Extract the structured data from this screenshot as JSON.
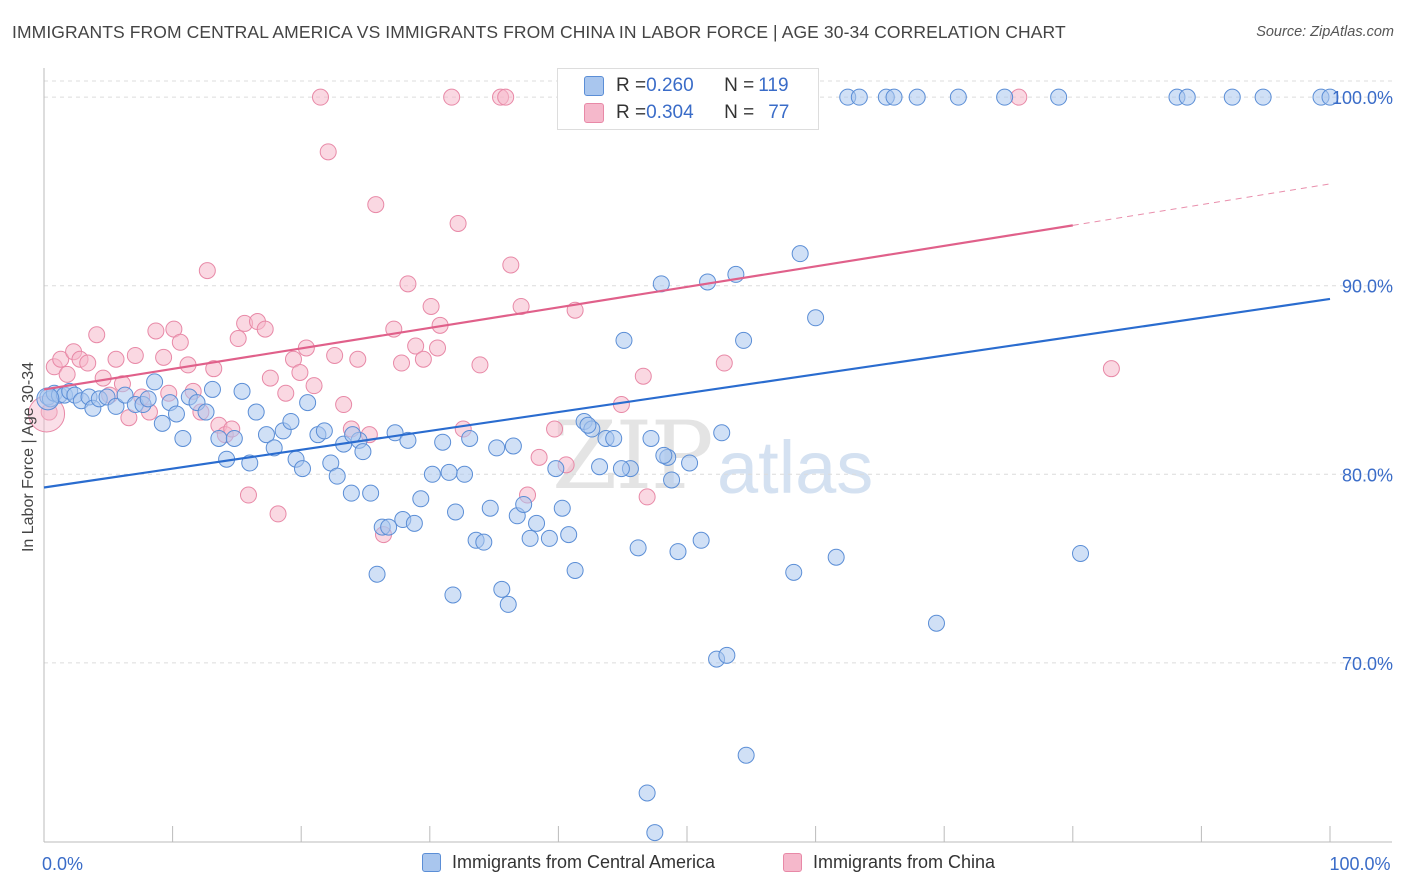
{
  "title": "IMMIGRANTS FROM CENTRAL AMERICA VS IMMIGRANTS FROM CHINA IN LABOR FORCE | AGE 30-34 CORRELATION CHART",
  "source": "Source: ZipAtlas.com",
  "watermark": {
    "zip": "ZIP",
    "atlas": "atlas"
  },
  "colors": {
    "blue_fill": "#a9c6ee",
    "blue_stroke": "#5b8ed6",
    "blue_line": "#2a6ccf",
    "pink_fill": "#f5b8cb",
    "pink_stroke": "#e889a7",
    "pink_line": "#e0608a",
    "tick_text": "#3a6cc8",
    "grid": "#dcdcdc"
  },
  "stats_legend": {
    "rows": [
      {
        "r_label": "R = ",
        "r_value": "0.260",
        "n_label": "N = ",
        "n_value": "119"
      },
      {
        "r_label": "R = ",
        "r_value": "0.304",
        "n_label": "N = ",
        "n_value": "77"
      }
    ]
  },
  "chart_data": {
    "type": "scatter",
    "title": "IMMIGRANTS FROM CENTRAL AMERICA VS IMMIGRANTS FROM CHINA IN LABOR FORCE | AGE 30-34 CORRELATION CHART",
    "xlabel": "",
    "ylabel": "In Labor Force | Age 30-34",
    "xlim": [
      0,
      100
    ],
    "ylim": [
      60.5,
      102.5
    ],
    "x_tick_labels": [
      {
        "value": 0,
        "label": "0.0%"
      },
      {
        "value": 100,
        "label": "100.0%"
      }
    ],
    "y_ticks": [
      {
        "value": 70,
        "label": "70.0%"
      },
      {
        "value": 80,
        "label": "80.0%"
      },
      {
        "value": 90,
        "label": "90.0%"
      },
      {
        "value": 100,
        "label": "100.0%"
      }
    ],
    "grid": "horizontal-dashed",
    "legend_placement": "bottom-center",
    "series": [
      {
        "name": "Immigrants from Central America",
        "color": "#a9c6ee",
        "R": 0.26,
        "N": 119,
        "trend": {
          "x0": 0,
          "y0": 79.3,
          "x1": 100,
          "y1": 89.3
        },
        "points": [
          [
            0.3,
            84.1
          ],
          [
            0.5,
            84.0
          ],
          [
            0.8,
            84.3
          ],
          [
            1.2,
            84.2
          ],
          [
            1.6,
            84.2
          ],
          [
            2.0,
            84.4
          ],
          [
            2.4,
            84.2
          ],
          [
            2.9,
            83.9
          ],
          [
            3.5,
            84.1
          ],
          [
            3.8,
            83.5
          ],
          [
            4.3,
            84.0
          ],
          [
            4.9,
            84.1
          ],
          [
            5.6,
            83.6
          ],
          [
            6.3,
            84.2
          ],
          [
            7.1,
            83.7
          ],
          [
            7.7,
            83.7
          ],
          [
            8.1,
            84.0
          ],
          [
            8.6,
            84.9
          ],
          [
            9.2,
            82.7
          ],
          [
            9.8,
            83.8
          ],
          [
            10.3,
            83.2
          ],
          [
            10.8,
            81.9
          ],
          [
            11.3,
            84.1
          ],
          [
            11.9,
            83.8
          ],
          [
            12.6,
            83.3
          ],
          [
            13.1,
            84.5
          ],
          [
            13.6,
            81.9
          ],
          [
            14.2,
            80.8
          ],
          [
            14.8,
            81.9
          ],
          [
            15.4,
            84.4
          ],
          [
            16.0,
            80.6
          ],
          [
            16.5,
            83.3
          ],
          [
            17.3,
            82.1
          ],
          [
            17.9,
            81.4
          ],
          [
            18.6,
            82.3
          ],
          [
            19.2,
            82.8
          ],
          [
            19.6,
            80.8
          ],
          [
            20.1,
            80.3
          ],
          [
            20.5,
            83.8
          ],
          [
            21.3,
            82.1
          ],
          [
            21.8,
            82.3
          ],
          [
            22.3,
            80.6
          ],
          [
            22.8,
            79.9
          ],
          [
            23.3,
            81.6
          ],
          [
            23.9,
            79.0
          ],
          [
            24.5,
            81.8
          ],
          [
            24.8,
            81.2
          ],
          [
            25.4,
            79.0
          ],
          [
            25.9,
            74.7
          ],
          [
            26.3,
            77.2
          ],
          [
            26.8,
            77.2
          ],
          [
            27.3,
            82.2
          ],
          [
            27.9,
            77.6
          ],
          [
            28.3,
            81.8
          ],
          [
            28.8,
            77.4
          ],
          [
            29.3,
            78.7
          ],
          [
            30.2,
            80.0
          ],
          [
            31.0,
            81.7
          ],
          [
            31.8,
            73.6
          ],
          [
            32.0,
            78.0
          ],
          [
            32.7,
            80.0
          ],
          [
            33.1,
            81.9
          ],
          [
            33.6,
            76.5
          ],
          [
            34.2,
            76.4
          ],
          [
            34.7,
            78.2
          ],
          [
            35.2,
            81.4
          ],
          [
            35.6,
            73.9
          ],
          [
            36.1,
            73.1
          ],
          [
            36.8,
            77.8
          ],
          [
            37.3,
            78.4
          ],
          [
            37.8,
            76.6
          ],
          [
            38.3,
            77.4
          ],
          [
            39.3,
            76.6
          ],
          [
            39.8,
            80.3
          ],
          [
            40.3,
            78.2
          ],
          [
            40.8,
            76.8
          ],
          [
            41.3,
            74.9
          ],
          [
            42.0,
            82.8
          ],
          [
            42.6,
            82.4
          ],
          [
            43.2,
            80.4
          ],
          [
            43.7,
            81.9
          ],
          [
            44.3,
            81.9
          ],
          [
            45.1,
            87.1
          ],
          [
            45.6,
            80.3
          ],
          [
            46.2,
            76.1
          ],
          [
            46.9,
            63.1
          ],
          [
            47.5,
            61.0
          ],
          [
            48.0,
            90.1
          ],
          [
            48.5,
            80.9
          ],
          [
            48.8,
            79.7
          ],
          [
            49.3,
            75.9
          ],
          [
            50.4,
            100.0
          ],
          [
            51.1,
            76.5
          ],
          [
            51.6,
            90.2
          ],
          [
            52.3,
            70.2
          ],
          [
            53.1,
            70.4
          ],
          [
            53.8,
            90.6
          ],
          [
            54.4,
            87.1
          ],
          [
            54.6,
            65.1
          ],
          [
            55.9,
            100.0
          ],
          [
            58.3,
            74.8
          ],
          [
            58.8,
            91.7
          ],
          [
            60.0,
            88.3
          ],
          [
            61.6,
            75.6
          ],
          [
            62.5,
            100.0
          ],
          [
            63.4,
            100.0
          ],
          [
            65.5,
            100.0
          ],
          [
            66.1,
            100.0
          ],
          [
            67.9,
            100.0
          ],
          [
            69.4,
            72.1
          ],
          [
            71.1,
            100.0
          ],
          [
            74.7,
            100.0
          ],
          [
            78.9,
            100.0
          ],
          [
            80.6,
            75.8
          ],
          [
            88.1,
            100.0
          ],
          [
            88.9,
            100.0
          ],
          [
            92.4,
            100.0
          ],
          [
            94.8,
            100.0
          ],
          [
            99.3,
            100.0
          ],
          [
            100.0,
            100.0
          ],
          [
            42.3,
            82.6
          ],
          [
            44.9,
            80.3
          ],
          [
            36.5,
            81.5
          ],
          [
            48.2,
            81.0
          ],
          [
            24.0,
            82.1
          ],
          [
            31.5,
            80.1
          ],
          [
            47.2,
            81.9
          ],
          [
            52.7,
            82.2
          ],
          [
            50.2,
            80.6
          ]
        ]
      },
      {
        "name": "Immigrants from China",
        "color": "#f5b8cb",
        "R": 0.304,
        "N": 77,
        "trend": {
          "x0": 0,
          "y0": 84.5,
          "x1": 80.0,
          "y1": 93.2,
          "dash_to_x": 100,
          "dash_to_y": 95.4
        },
        "points": [
          [
            0.4,
            83.3
          ],
          [
            0.8,
            85.7
          ],
          [
            1.3,
            86.1
          ],
          [
            1.8,
            85.3
          ],
          [
            2.3,
            86.5
          ],
          [
            2.8,
            86.1
          ],
          [
            3.4,
            85.9
          ],
          [
            4.1,
            87.4
          ],
          [
            4.6,
            85.1
          ],
          [
            5.1,
            84.2
          ],
          [
            5.6,
            86.1
          ],
          [
            6.1,
            84.8
          ],
          [
            6.6,
            83.0
          ],
          [
            7.1,
            86.3
          ],
          [
            7.6,
            84.1
          ],
          [
            8.2,
            83.3
          ],
          [
            8.7,
            87.6
          ],
          [
            9.3,
            86.2
          ],
          [
            9.7,
            84.3
          ],
          [
            10.1,
            87.7
          ],
          [
            10.6,
            87.0
          ],
          [
            11.2,
            85.8
          ],
          [
            11.6,
            84.4
          ],
          [
            12.2,
            83.3
          ],
          [
            12.7,
            90.8
          ],
          [
            13.2,
            85.6
          ],
          [
            13.6,
            82.6
          ],
          [
            14.1,
            82.1
          ],
          [
            14.6,
            82.4
          ],
          [
            15.1,
            87.2
          ],
          [
            15.6,
            88.0
          ],
          [
            15.9,
            78.9
          ],
          [
            16.6,
            88.1
          ],
          [
            17.2,
            87.7
          ],
          [
            17.6,
            85.1
          ],
          [
            18.2,
            77.9
          ],
          [
            18.8,
            84.3
          ],
          [
            19.4,
            86.1
          ],
          [
            19.9,
            85.4
          ],
          [
            20.4,
            86.7
          ],
          [
            21.0,
            84.7
          ],
          [
            21.5,
            100.0
          ],
          [
            22.1,
            97.1
          ],
          [
            22.6,
            86.3
          ],
          [
            23.3,
            83.7
          ],
          [
            23.9,
            82.4
          ],
          [
            24.4,
            86.1
          ],
          [
            25.3,
            82.1
          ],
          [
            25.8,
            94.3
          ],
          [
            26.4,
            76.8
          ],
          [
            27.2,
            87.7
          ],
          [
            27.8,
            85.9
          ],
          [
            28.3,
            90.1
          ],
          [
            28.9,
            86.8
          ],
          [
            29.5,
            86.1
          ],
          [
            30.1,
            88.9
          ],
          [
            30.6,
            86.7
          ],
          [
            30.8,
            87.9
          ],
          [
            31.7,
            100.0
          ],
          [
            32.2,
            93.3
          ],
          [
            32.6,
            82.4
          ],
          [
            33.9,
            85.8
          ],
          [
            35.5,
            100.0
          ],
          [
            35.9,
            100.0
          ],
          [
            36.3,
            91.1
          ],
          [
            37.1,
            88.9
          ],
          [
            37.6,
            78.9
          ],
          [
            38.5,
            80.9
          ],
          [
            39.7,
            82.4
          ],
          [
            40.6,
            80.5
          ],
          [
            41.3,
            88.7
          ],
          [
            44.9,
            83.7
          ],
          [
            46.6,
            85.2
          ],
          [
            46.9,
            78.8
          ],
          [
            52.9,
            85.9
          ],
          [
            75.8,
            100.0
          ],
          [
            83.0,
            85.6
          ]
        ]
      }
    ]
  }
}
